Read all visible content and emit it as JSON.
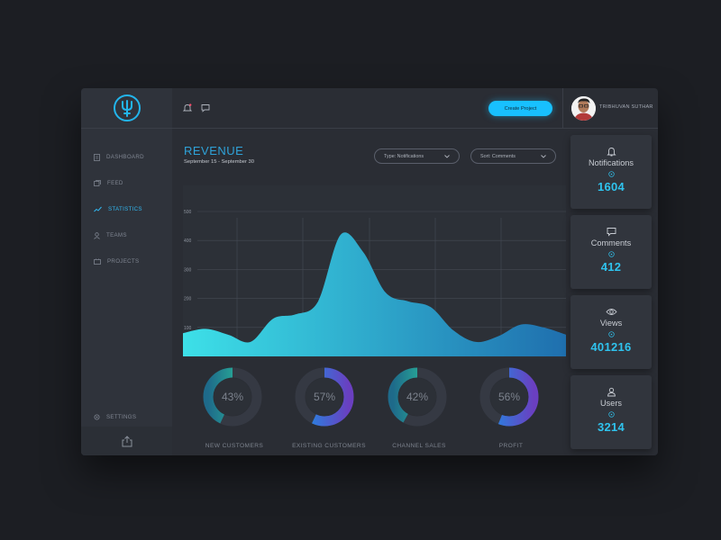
{
  "sidebar": {
    "items": [
      {
        "label": "DASHBOARD",
        "icon": "dashboard-icon"
      },
      {
        "label": "FEED",
        "icon": "feed-icon"
      },
      {
        "label": "STATISTICS",
        "icon": "statistics-icon",
        "active": true
      },
      {
        "label": "TEAMS",
        "icon": "teams-icon"
      },
      {
        "label": "PROJECTS",
        "icon": "projects-icon"
      }
    ],
    "settings_label": "SETTINGS"
  },
  "header": {
    "create_label": "Create Project",
    "user_name": "TRIBHUVAN SUTHAR"
  },
  "revenue": {
    "title": "REVENUE",
    "date_range": "September 15 - September 30",
    "type_filter": "Type: Notifications",
    "sort_filter": "Sort: Comments"
  },
  "chart_data": {
    "type": "area",
    "title": "REVENUE",
    "xlabel": "",
    "ylabel": "",
    "yticks": [
      "100",
      "200",
      "300",
      "400",
      "500"
    ],
    "ylim": [
      0,
      500
    ],
    "grid": true,
    "x": [
      0,
      1,
      2,
      3,
      4,
      5,
      6,
      7,
      8,
      9,
      10,
      11,
      12,
      13,
      14,
      15,
      16,
      17
    ],
    "values": [
      80,
      95,
      75,
      50,
      130,
      145,
      190,
      420,
      360,
      220,
      190,
      170,
      90,
      50,
      70,
      110,
      100,
      75
    ]
  },
  "donuts": [
    {
      "label": "NEW CUSTOMERS",
      "value": 43,
      "percent_text": "43%",
      "colors": [
        "#2fd3a0",
        "#1e6a8a"
      ]
    },
    {
      "label": "EXISTING CUSTOMERS",
      "value": 57,
      "percent_text": "57%",
      "colors": [
        "#1c8fe6",
        "#6a3fc0"
      ]
    },
    {
      "label": "CHANNEL SALES",
      "value": 42,
      "percent_text": "42%",
      "colors": [
        "#2fd3a0",
        "#1e6a8a"
      ]
    },
    {
      "label": "PROFIT",
      "value": 56,
      "percent_text": "56%",
      "colors": [
        "#1c8fe6",
        "#6a3fc0"
      ]
    }
  ],
  "stats": [
    {
      "label": "Notifications",
      "value": "1604",
      "icon": "bell-icon"
    },
    {
      "label": "Comments",
      "value": "412",
      "icon": "comment-icon"
    },
    {
      "label": "Views",
      "value": "401216",
      "icon": "eye-icon"
    },
    {
      "label": "Users",
      "value": "3214",
      "icon": "user-icon"
    }
  ],
  "colors": {
    "accent": "#31b7f0",
    "button": "#18c0ff",
    "value": "#2fc3ee",
    "area_start": "#3de0e8",
    "area_end": "#1f6fae"
  }
}
